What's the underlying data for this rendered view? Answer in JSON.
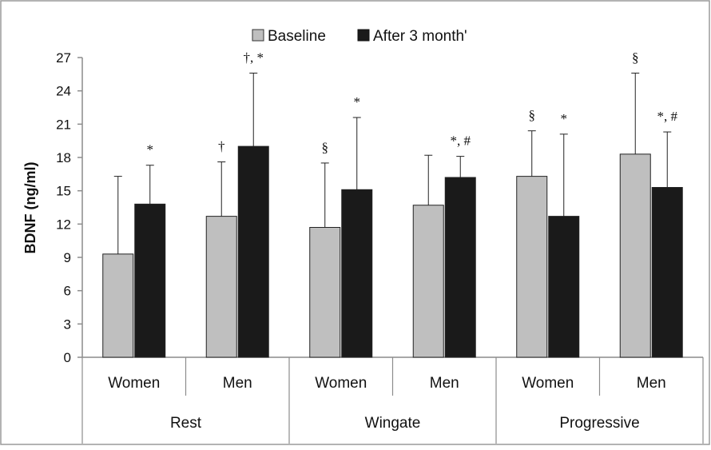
{
  "chart_data": {
    "type": "bar",
    "title": "",
    "xlabel": "",
    "ylabel": "BDNF  (ng/ml)",
    "ylim": [
      0,
      27
    ],
    "yticks": [
      0,
      3,
      6,
      9,
      12,
      15,
      18,
      21,
      24,
      27
    ],
    "grid": false,
    "legend_position": "top-center",
    "categories": [
      "Women",
      "Men",
      "Women",
      "Men",
      "Women",
      "Men"
    ],
    "groups": [
      {
        "label": "Rest",
        "categories": [
          "Women",
          "Men"
        ]
      },
      {
        "label": "Wingate",
        "categories": [
          "Women",
          "Men"
        ]
      },
      {
        "label": "Progressive",
        "categories": [
          "Women",
          "Men"
        ]
      }
    ],
    "series": [
      {
        "name": "Baseline",
        "color": "#bfbfbf",
        "values": [
          9.3,
          12.7,
          11.7,
          13.7,
          16.3,
          18.3
        ],
        "error": [
          7.0,
          4.9,
          5.8,
          4.5,
          4.1,
          7.3
        ],
        "annotations": [
          "",
          "†",
          "§",
          "",
          "§",
          "§"
        ]
      },
      {
        "name": "After 3 month'",
        "color": "#1a1a1a",
        "values": [
          13.8,
          19.0,
          15.1,
          16.2,
          12.7,
          15.3
        ],
        "error": [
          3.5,
          6.6,
          6.5,
          1.9,
          7.4,
          5.0
        ],
        "annotations": [
          "*",
          "†, *",
          "*",
          "*, #",
          "*",
          "*, #"
        ]
      }
    ]
  }
}
